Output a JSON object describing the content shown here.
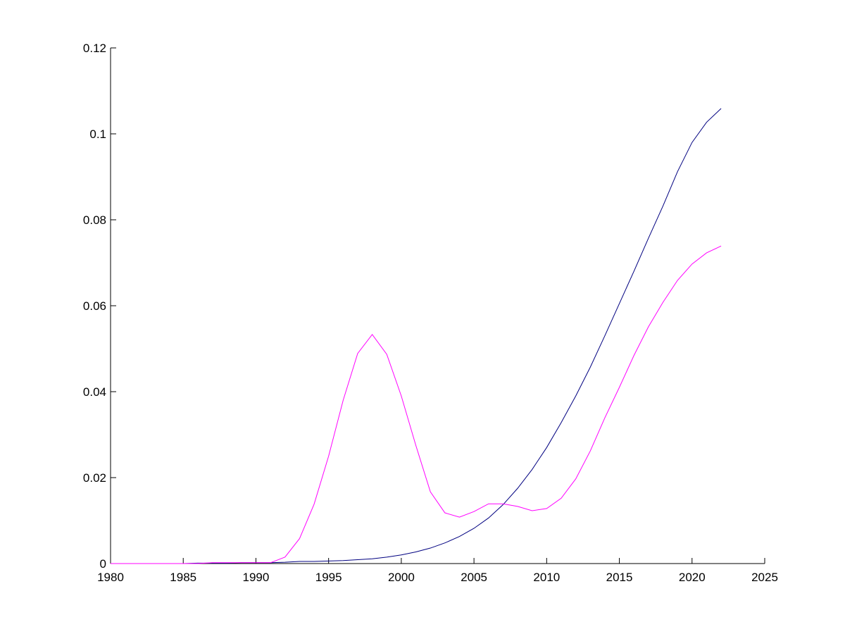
{
  "chart_data": {
    "type": "line",
    "x": [
      1980,
      1981,
      1982,
      1983,
      1984,
      1985,
      1986,
      1987,
      1988,
      1989,
      1990,
      1991,
      1992,
      1993,
      1994,
      1995,
      1996,
      1997,
      1998,
      1999,
      2000,
      2001,
      2002,
      2003,
      2004,
      2005,
      2006,
      2007,
      2008,
      2009,
      2010,
      2011,
      2012,
      2013,
      2014,
      2015,
      2016,
      2017,
      2018,
      2019,
      2020,
      2021,
      2022
    ],
    "series": [
      {
        "color": "#000080",
        "values": [
          0,
          0,
          0,
          0,
          0,
          0,
          0.0001,
          0.0001,
          0.0001,
          0.0002,
          0.0002,
          0.0002,
          0.0003,
          0.0005,
          0.0005,
          0.0006,
          0.0007,
          0.0009,
          0.0011,
          0.0015,
          0.002,
          0.0027,
          0.0036,
          0.0048,
          0.0063,
          0.0082,
          0.0106,
          0.0137,
          0.0175,
          0.0219,
          0.027,
          0.0328,
          0.039,
          0.0457,
          0.053,
          0.0605,
          0.068,
          0.0757,
          0.0832,
          0.0912,
          0.098,
          0.1027,
          0.1059
        ]
      },
      {
        "color": "#ff00ff",
        "values": [
          0,
          0,
          0,
          0,
          0,
          0,
          0,
          0.0002,
          0.0002,
          0.0002,
          0.0002,
          0.0002,
          0.0015,
          0.0058,
          0.0138,
          0.025,
          0.038,
          0.0489,
          0.0533,
          0.0487,
          0.039,
          0.0275,
          0.0167,
          0.0118,
          0.0108,
          0.0121,
          0.0139,
          0.0139,
          0.0133,
          0.0123,
          0.0128,
          0.0152,
          0.0197,
          0.0262,
          0.0339,
          0.041,
          0.0484,
          0.0551,
          0.0608,
          0.0659,
          0.0697,
          0.0723,
          0.0739
        ]
      }
    ],
    "xlim": [
      1980,
      2025
    ],
    "xticks": [
      1980,
      1985,
      1990,
      1995,
      2000,
      2005,
      2010,
      2015,
      2020,
      2025
    ],
    "ylim": [
      0,
      0.12
    ],
    "yticks": [
      0,
      0.02,
      0.04,
      0.06,
      0.08,
      0.1,
      0.12
    ]
  }
}
